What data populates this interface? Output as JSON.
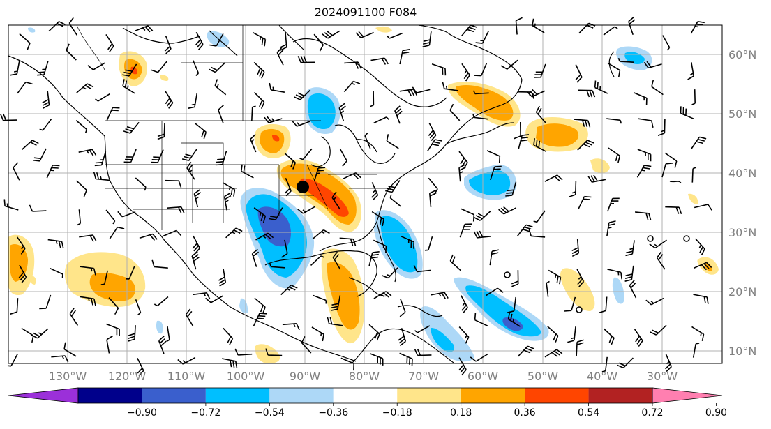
{
  "title": "2024091100 F084",
  "lon_labels": [
    "130°W",
    "120°W",
    "110°W",
    "100°W",
    "90°W",
    "80°W",
    "70°W",
    "60°W",
    "50°W",
    "40°W",
    "30°W"
  ],
  "lat_labels": [
    "60°N",
    "50°N",
    "40°N",
    "30°N",
    "20°N",
    "10°N"
  ],
  "colorbar": {
    "ticks": [
      "−0.90",
      "−0.72",
      "−0.54",
      "−0.36",
      "−0.18",
      "0.18",
      "0.36",
      "0.54",
      "0.72",
      "0.90"
    ],
    "colors": [
      "#9b30d9",
      "#00008b",
      "#3a5fcd",
      "#00bfff",
      "#add8f7",
      "#ffffff",
      "#ffe58a",
      "#ffa500",
      "#ff4500",
      "#b22222",
      "#ff7fb0"
    ]
  },
  "marker": {
    "name": "point-marker",
    "lon": -90,
    "lat": 38
  }
}
